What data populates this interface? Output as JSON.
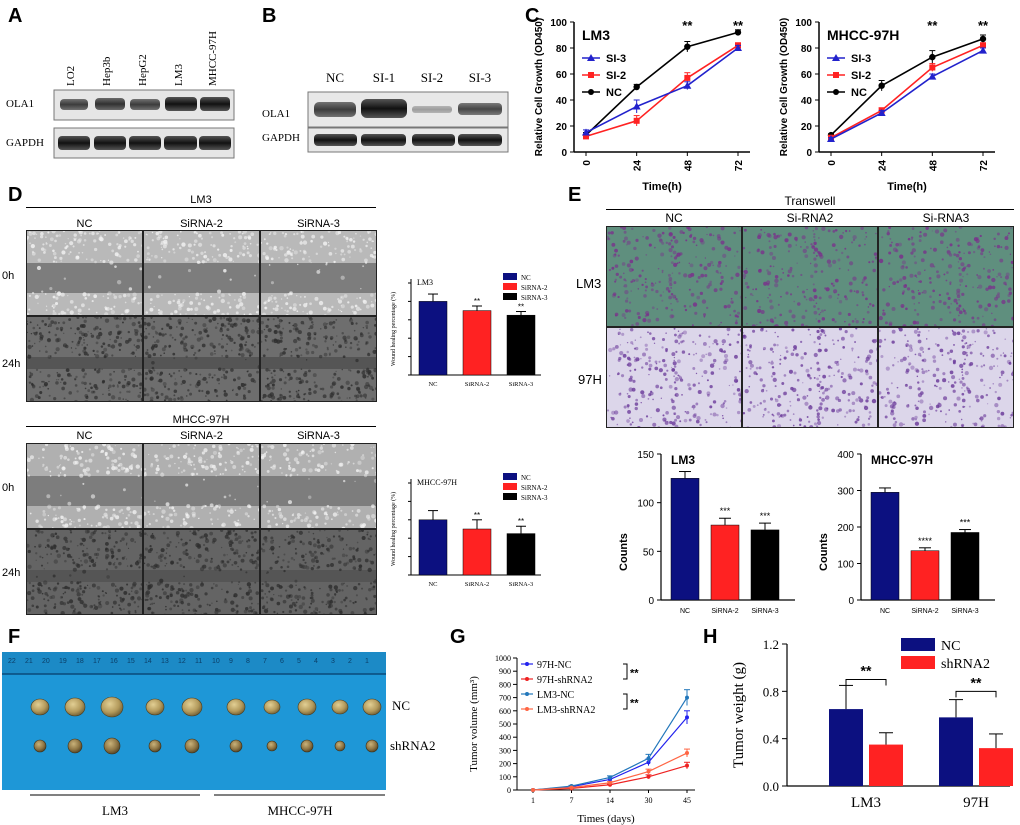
{
  "panels": {
    "A": "A",
    "B": "B",
    "C": "C",
    "D": "D",
    "E": "E",
    "F": "F",
    "G": "G",
    "H": "H"
  },
  "colors": {
    "blue": "#1a1a8f",
    "red": "#ff2222",
    "black": "#000000",
    "navy": "#0c1080"
  },
  "panelA": {
    "lanes": [
      "LO2",
      "Hep3b",
      "HepG2",
      "LM3",
      "MHCC-97H"
    ],
    "rows": [
      "OLA1",
      "GAPDH"
    ]
  },
  "panelB": {
    "lanes": [
      "NC",
      "SI-1",
      "SI-2",
      "SI-3"
    ],
    "rows": [
      "OLA1",
      "GAPDH"
    ]
  },
  "panelD": {
    "top_title": "LM3",
    "bottom_title": "MHCC-97H",
    "cols": [
      "NC",
      "SiRNA-2",
      "SiRNA-3"
    ],
    "rows": [
      "0h",
      "24h"
    ]
  },
  "panelE": {
    "title": "Transwell",
    "cols": [
      "NC",
      "Si-RNA2",
      "Si-RNA3"
    ],
    "rows": [
      "LM3",
      "97H"
    ]
  },
  "panelF": {
    "rows": [
      "NC",
      "shRNA2"
    ],
    "groups": [
      "LM3",
      "MHCC-97H"
    ],
    "ruler_numbers": [
      "22",
      "21",
      "20",
      "19",
      "18",
      "17",
      "16",
      "15",
      "14",
      "13",
      "12",
      "11",
      "10",
      "9",
      "8",
      "7",
      "6",
      "5",
      "4",
      "3",
      "2",
      "1"
    ]
  },
  "chart_data": [
    {
      "id": "C-LM3",
      "type": "line",
      "title": "LM3",
      "xlabel": "Time(h)",
      "ylabel": "Relative Cell Growth (OD450)",
      "x": [
        0,
        24,
        48,
        72
      ],
      "ylim": [
        0,
        100
      ],
      "yticks": [
        0,
        20,
        40,
        60,
        80,
        100
      ],
      "series": [
        {
          "name": "SI-3",
          "values": [
            15,
            35,
            51,
            80
          ],
          "errors": [
            2,
            5,
            3,
            2
          ],
          "color": "#2222cc",
          "marker": "triangle"
        },
        {
          "name": "SI-2",
          "values": [
            12,
            24,
            57,
            82
          ],
          "errors": [
            2,
            4,
            4,
            2
          ],
          "color": "#ff2222",
          "marker": "square"
        },
        {
          "name": "NC",
          "values": [
            13,
            50,
            81,
            92
          ],
          "errors": [
            2,
            2,
            4,
            2
          ],
          "color": "#000000",
          "marker": "circle"
        }
      ],
      "annotations": [
        {
          "x": 48,
          "text": "**"
        },
        {
          "x": 72,
          "text": "**"
        }
      ],
      "legend": "top-left"
    },
    {
      "id": "C-97H",
      "type": "line",
      "title": "MHCC-97H",
      "xlabel": "Time(h)",
      "ylabel": "Relative Cell Growth (OD450)",
      "x": [
        0,
        24,
        48,
        72
      ],
      "ylim": [
        0,
        100
      ],
      "yticks": [
        0,
        20,
        40,
        60,
        80,
        100
      ],
      "series": [
        {
          "name": "SI-3",
          "values": [
            10,
            30,
            58,
            78
          ],
          "errors": [
            1,
            2,
            2,
            2
          ],
          "color": "#2222cc",
          "marker": "triangle"
        },
        {
          "name": "SI-2",
          "values": [
            11,
            32,
            65,
            82
          ],
          "errors": [
            1,
            2,
            3,
            2
          ],
          "color": "#ff2222",
          "marker": "square"
        },
        {
          "name": "NC",
          "values": [
            13,
            51,
            73,
            87
          ],
          "errors": [
            1,
            4,
            5,
            3
          ],
          "color": "#000000",
          "marker": "circle"
        }
      ],
      "annotations": [
        {
          "x": 48,
          "text": "**"
        },
        {
          "x": 72,
          "text": "**"
        }
      ],
      "legend": "top-left"
    },
    {
      "id": "D-LM3",
      "type": "bar",
      "title": "LM3",
      "ylabel": "Wound healing percentage (%)",
      "categories": [
        "NC",
        "SiRNA-2",
        "SiRNA-3"
      ],
      "values": [
        80,
        70,
        65
      ],
      "errors": [
        8,
        5,
        4
      ],
      "colors": [
        "#0c1080",
        "#ff2222",
        "#000000"
      ],
      "ylim": [
        0,
        100
      ],
      "sig": [
        "",
        "**",
        "**"
      ],
      "legend": "top-right"
    },
    {
      "id": "D-97H",
      "type": "bar",
      "title": "MHCC-97H",
      "ylabel": "Wound healing percentage (%)",
      "categories": [
        "NC",
        "SiRNA-2",
        "SiRNA-3"
      ],
      "values": [
        60,
        50,
        45
      ],
      "errors": [
        10,
        10,
        8
      ],
      "colors": [
        "#0c1080",
        "#ff2222",
        "#000000"
      ],
      "ylim": [
        0,
        100
      ],
      "sig": [
        "",
        "**",
        "**"
      ],
      "legend": "top-right"
    },
    {
      "id": "E-LM3",
      "type": "bar",
      "title": "LM3",
      "ylabel": "Counts",
      "categories": [
        "NC",
        "SiRNA-2",
        "SiRNA-3"
      ],
      "values": [
        125,
        77,
        72
      ],
      "errors": [
        7,
        7,
        7
      ],
      "colors": [
        "#0c1080",
        "#ff2222",
        "#000000"
      ],
      "ylim": [
        0,
        150
      ],
      "yticks": [
        0,
        50,
        100,
        150
      ],
      "sig": [
        "",
        "***",
        "***"
      ]
    },
    {
      "id": "E-97H",
      "type": "bar",
      "title": "MHCC-97H",
      "ylabel": "Counts",
      "categories": [
        "NC",
        "SiRNA-2",
        "SiRNA-3"
      ],
      "values": [
        295,
        135,
        185
      ],
      "errors": [
        12,
        8,
        8
      ],
      "colors": [
        "#0c1080",
        "#ff2222",
        "#000000"
      ],
      "ylim": [
        0,
        400
      ],
      "yticks": [
        0,
        100,
        200,
        300,
        400
      ],
      "sig": [
        "",
        "****",
        "***"
      ]
    },
    {
      "id": "G",
      "type": "line",
      "xlabel": "Times (days)",
      "ylabel": "Tumor volume (mm³)",
      "categories": [
        "1",
        "7",
        "14",
        "30",
        "45"
      ],
      "ylim": [
        0,
        1000
      ],
      "yticks": [
        0,
        100,
        200,
        300,
        400,
        500,
        600,
        700,
        800,
        900,
        1000
      ],
      "series": [
        {
          "name": "97H-NC",
          "values": [
            0,
            25,
            80,
            210,
            550
          ],
          "errors": [
            0,
            5,
            10,
            25,
            50
          ],
          "color": "#2222ee"
        },
        {
          "name": "97H-shRNA2",
          "values": [
            0,
            12,
            40,
            100,
            185
          ],
          "errors": [
            0,
            3,
            5,
            15,
            25
          ],
          "color": "#ee2222"
        },
        {
          "name": "LM3-NC",
          "values": [
            0,
            30,
            95,
            240,
            700
          ],
          "errors": [
            0,
            5,
            12,
            30,
            60
          ],
          "color": "#2277bb"
        },
        {
          "name": "LM3-shRNA2",
          "values": [
            0,
            18,
            55,
            140,
            280
          ],
          "errors": [
            0,
            4,
            8,
            18,
            30
          ],
          "color": "#ff6644"
        }
      ],
      "sig": [
        "**",
        "**"
      ],
      "legend": "top-left"
    },
    {
      "id": "H",
      "type": "bar",
      "ylabel": "Tumor weight (g)",
      "categories": [
        "LM3",
        "97H"
      ],
      "series": [
        {
          "name": "NC",
          "values": [
            0.65,
            0.58
          ],
          "errors": [
            0.2,
            0.15
          ],
          "color": "#0c1080"
        },
        {
          "name": "shRNA2",
          "values": [
            0.35,
            0.32
          ],
          "errors": [
            0.1,
            0.12
          ],
          "color": "#ff2222"
        }
      ],
      "ylim": [
        0,
        1.2
      ],
      "yticks": [
        "0.0",
        "0.4",
        "0.8",
        "1.2"
      ],
      "sig": [
        "**",
        "**"
      ],
      "legend": "top-right"
    }
  ]
}
